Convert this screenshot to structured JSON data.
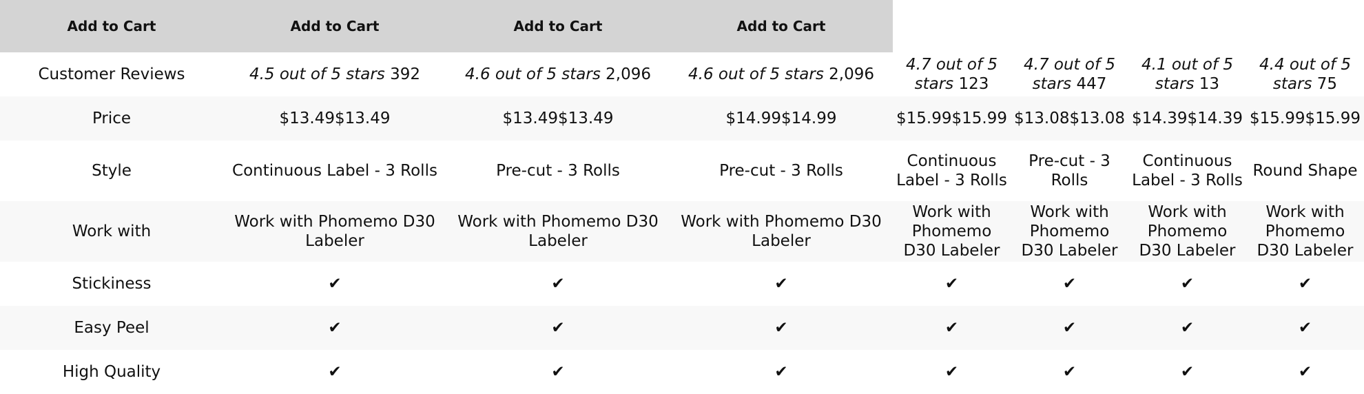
{
  "header": {
    "buttons": [
      "Add to Cart",
      "Add to Cart",
      "Add to Cart",
      "Add to Cart"
    ]
  },
  "rows": [
    {
      "label": "Customer Reviews",
      "type": "rating",
      "values": [
        {
          "rating": "4.5 out of 5 stars",
          "count": "392"
        },
        {
          "rating": "4.6 out of 5 stars",
          "count": "2,096"
        },
        {
          "rating": "4.6 out of 5 stars",
          "count": "2,096"
        },
        {
          "rating": "4.7 out of 5 stars",
          "count": "123"
        },
        {
          "rating": "4.7 out of 5 stars",
          "count": "447"
        },
        {
          "rating": "4.1 out of 5 stars",
          "count": "13"
        },
        {
          "rating": "4.4 out of 5 stars",
          "count": "75"
        }
      ]
    },
    {
      "label": "Price",
      "type": "text",
      "values": [
        "$13.49$13.49",
        "$13.49$13.49",
        "$14.99$14.99",
        "$15.99$15.99",
        "$13.08$13.08",
        "$14.39$14.39",
        "$15.99$15.99"
      ]
    },
    {
      "label": "Style",
      "type": "text",
      "values": [
        "Continuous Label - 3 Rolls",
        "Pre-cut - 3 Rolls",
        "Pre-cut - 3 Rolls",
        "Continuous Label - 3 Rolls",
        "Pre-cut - 3 Rolls",
        "Continuous Label - 3 Rolls",
        "Round Shape"
      ]
    },
    {
      "label": "Work with",
      "type": "text",
      "values": [
        "Work with Phomemo D30 Labeler",
        "Work with Phomemo D30 Labeler",
        "Work with Phomemo D30 Labeler",
        "Work with Phomemo D30 Labeler",
        "Work with Phomemo D30 Labeler",
        "Work with Phomemo D30 Labeler",
        "Work with Phomemo D30 Labeler"
      ]
    },
    {
      "label": "Stickiness",
      "type": "text",
      "values": [
        "✔",
        "✔",
        "✔",
        "✔",
        "✔",
        "✔",
        "✔"
      ]
    },
    {
      "label": "Easy Peel",
      "type": "text",
      "values": [
        "✔",
        "✔",
        "✔",
        "✔",
        "✔",
        "✔",
        "✔"
      ]
    },
    {
      "label": "High Quality",
      "type": "text",
      "values": [
        "✔",
        "✔",
        "✔",
        "✔",
        "✔",
        "✔",
        "✔"
      ]
    }
  ],
  "colors": {
    "header_bg": "#d4d4d4",
    "alt_row_bg": "#f8f8f8"
  }
}
